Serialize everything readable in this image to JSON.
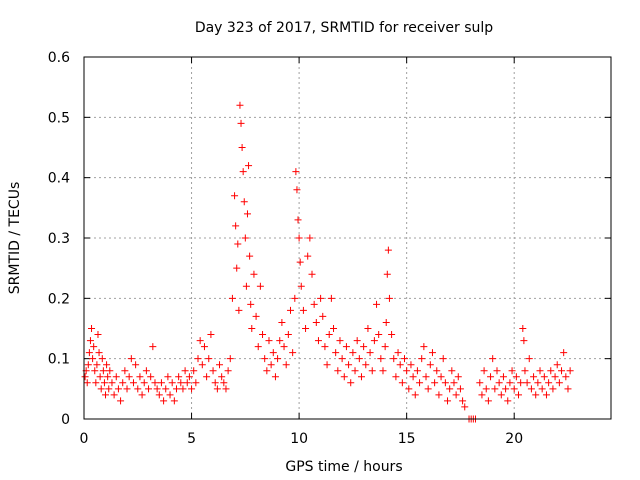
{
  "chart_data": {
    "type": "scatter",
    "title": "Day 323 of 2017, SRMTID for receiver sulp",
    "xlabel": "GPS time / hours",
    "ylabel": "SRMTID / TECUs",
    "xlim": [
      0,
      24.5
    ],
    "ylim": [
      0,
      0.6
    ],
    "xticks": [
      0,
      5,
      10,
      15,
      20
    ],
    "yticks": [
      0,
      0.1,
      0.2,
      0.3,
      0.4,
      0.5,
      0.6
    ],
    "xtick_labels": [
      "0",
      "5",
      "10",
      "15",
      "20"
    ],
    "ytick_labels": [
      "0",
      "0.1",
      "0.2",
      "0.3",
      "0.4",
      "0.5",
      "0.6"
    ],
    "grid": true,
    "marker": "plus",
    "color": "#ff0000",
    "series": [
      {
        "name": "SRMTID",
        "points": [
          [
            0.05,
            0.07
          ],
          [
            0.1,
            0.08
          ],
          [
            0.15,
            0.06
          ],
          [
            0.2,
            0.09
          ],
          [
            0.25,
            0.11
          ],
          [
            0.3,
            0.13
          ],
          [
            0.35,
            0.15
          ],
          [
            0.4,
            0.1
          ],
          [
            0.45,
            0.12
          ],
          [
            0.5,
            0.08
          ],
          [
            0.55,
            0.06
          ],
          [
            0.6,
            0.09
          ],
          [
            0.65,
            0.14
          ],
          [
            0.7,
            0.11
          ],
          [
            0.75,
            0.07
          ],
          [
            0.8,
            0.05
          ],
          [
            0.85,
            0.1
          ],
          [
            0.9,
            0.08
          ],
          [
            0.95,
            0.06
          ],
          [
            1.0,
            0.04
          ],
          [
            1.05,
            0.09
          ],
          [
            1.1,
            0.07
          ],
          [
            1.15,
            0.05
          ],
          [
            1.2,
            0.08
          ],
          [
            1.3,
            0.06
          ],
          [
            1.4,
            0.04
          ],
          [
            1.5,
            0.07
          ],
          [
            1.6,
            0.05
          ],
          [
            1.7,
            0.03
          ],
          [
            1.8,
            0.06
          ],
          [
            1.9,
            0.08
          ],
          [
            2.0,
            0.05
          ],
          [
            2.1,
            0.07
          ],
          [
            2.2,
            0.1
          ],
          [
            2.3,
            0.06
          ],
          [
            2.4,
            0.09
          ],
          [
            2.5,
            0.05
          ],
          [
            2.6,
            0.07
          ],
          [
            2.7,
            0.04
          ],
          [
            2.8,
            0.06
          ],
          [
            2.9,
            0.08
          ],
          [
            3.0,
            0.05
          ],
          [
            3.1,
            0.07
          ],
          [
            3.2,
            0.12
          ],
          [
            3.3,
            0.06
          ],
          [
            3.4,
            0.05
          ],
          [
            3.5,
            0.04
          ],
          [
            3.6,
            0.06
          ],
          [
            3.7,
            0.03
          ],
          [
            3.8,
            0.05
          ],
          [
            3.9,
            0.07
          ],
          [
            4.0,
            0.04
          ],
          [
            4.1,
            0.06
          ],
          [
            4.2,
            0.03
          ],
          [
            4.3,
            0.05
          ],
          [
            4.4,
            0.07
          ],
          [
            4.5,
            0.06
          ],
          [
            4.6,
            0.05
          ],
          [
            4.7,
            0.08
          ],
          [
            4.8,
            0.06
          ],
          [
            4.9,
            0.07
          ],
          [
            5.0,
            0.05
          ],
          [
            5.1,
            0.08
          ],
          [
            5.2,
            0.06
          ],
          [
            5.3,
            0.1
          ],
          [
            5.4,
            0.13
          ],
          [
            5.5,
            0.09
          ],
          [
            5.6,
            0.12
          ],
          [
            5.7,
            0.07
          ],
          [
            5.8,
            0.1
          ],
          [
            5.9,
            0.14
          ],
          [
            6.0,
            0.08
          ],
          [
            6.1,
            0.06
          ],
          [
            6.2,
            0.05
          ],
          [
            6.3,
            0.09
          ],
          [
            6.4,
            0.07
          ],
          [
            6.5,
            0.06
          ],
          [
            6.6,
            0.05
          ],
          [
            6.7,
            0.08
          ],
          [
            6.8,
            0.1
          ],
          [
            6.9,
            0.2
          ],
          [
            7.0,
            0.37
          ],
          [
            7.05,
            0.32
          ],
          [
            7.1,
            0.25
          ],
          [
            7.15,
            0.29
          ],
          [
            7.2,
            0.18
          ],
          [
            7.25,
            0.52
          ],
          [
            7.3,
            0.49
          ],
          [
            7.35,
            0.45
          ],
          [
            7.4,
            0.41
          ],
          [
            7.45,
            0.36
          ],
          [
            7.5,
            0.3
          ],
          [
            7.55,
            0.22
          ],
          [
            7.6,
            0.34
          ],
          [
            7.65,
            0.42
          ],
          [
            7.7,
            0.27
          ],
          [
            7.75,
            0.19
          ],
          [
            7.8,
            0.15
          ],
          [
            7.9,
            0.24
          ],
          [
            8.0,
            0.17
          ],
          [
            8.1,
            0.12
          ],
          [
            8.2,
            0.22
          ],
          [
            8.3,
            0.14
          ],
          [
            8.4,
            0.1
          ],
          [
            8.5,
            0.08
          ],
          [
            8.6,
            0.13
          ],
          [
            8.7,
            0.09
          ],
          [
            8.8,
            0.11
          ],
          [
            8.9,
            0.07
          ],
          [
            9.0,
            0.1
          ],
          [
            9.1,
            0.13
          ],
          [
            9.2,
            0.16
          ],
          [
            9.3,
            0.12
          ],
          [
            9.4,
            0.09
          ],
          [
            9.5,
            0.14
          ],
          [
            9.6,
            0.18
          ],
          [
            9.7,
            0.11
          ],
          [
            9.8,
            0.2
          ],
          [
            9.85,
            0.41
          ],
          [
            9.9,
            0.38
          ],
          [
            9.95,
            0.33
          ],
          [
            10.0,
            0.3
          ],
          [
            10.05,
            0.26
          ],
          [
            10.1,
            0.22
          ],
          [
            10.2,
            0.18
          ],
          [
            10.3,
            0.15
          ],
          [
            10.4,
            0.27
          ],
          [
            10.5,
            0.3
          ],
          [
            10.6,
            0.24
          ],
          [
            10.7,
            0.19
          ],
          [
            10.8,
            0.16
          ],
          [
            10.9,
            0.13
          ],
          [
            11.0,
            0.2
          ],
          [
            11.1,
            0.17
          ],
          [
            11.2,
            0.12
          ],
          [
            11.3,
            0.09
          ],
          [
            11.4,
            0.14
          ],
          [
            11.5,
            0.2
          ],
          [
            11.6,
            0.15
          ],
          [
            11.7,
            0.11
          ],
          [
            11.8,
            0.08
          ],
          [
            11.9,
            0.13
          ],
          [
            12.0,
            0.1
          ],
          [
            12.1,
            0.07
          ],
          [
            12.2,
            0.12
          ],
          [
            12.3,
            0.09
          ],
          [
            12.4,
            0.06
          ],
          [
            12.5,
            0.11
          ],
          [
            12.6,
            0.08
          ],
          [
            12.7,
            0.13
          ],
          [
            12.8,
            0.1
          ],
          [
            12.9,
            0.07
          ],
          [
            13.0,
            0.12
          ],
          [
            13.1,
            0.09
          ],
          [
            13.2,
            0.15
          ],
          [
            13.3,
            0.11
          ],
          [
            13.4,
            0.08
          ],
          [
            13.5,
            0.13
          ],
          [
            13.6,
            0.19
          ],
          [
            13.7,
            0.14
          ],
          [
            13.8,
            0.1
          ],
          [
            13.9,
            0.08
          ],
          [
            14.0,
            0.12
          ],
          [
            14.05,
            0.16
          ],
          [
            14.1,
            0.24
          ],
          [
            14.15,
            0.28
          ],
          [
            14.2,
            0.2
          ],
          [
            14.3,
            0.14
          ],
          [
            14.4,
            0.1
          ],
          [
            14.5,
            0.07
          ],
          [
            14.6,
            0.11
          ],
          [
            14.7,
            0.09
          ],
          [
            14.8,
            0.06
          ],
          [
            14.9,
            0.1
          ],
          [
            15.0,
            0.08
          ],
          [
            15.1,
            0.05
          ],
          [
            15.2,
            0.09
          ],
          [
            15.3,
            0.07
          ],
          [
            15.4,
            0.04
          ],
          [
            15.5,
            0.08
          ],
          [
            15.6,
            0.06
          ],
          [
            15.7,
            0.1
          ],
          [
            15.8,
            0.12
          ],
          [
            15.9,
            0.07
          ],
          [
            16.0,
            0.05
          ],
          [
            16.1,
            0.09
          ],
          [
            16.2,
            0.11
          ],
          [
            16.3,
            0.06
          ],
          [
            16.4,
            0.08
          ],
          [
            16.5,
            0.04
          ],
          [
            16.6,
            0.07
          ],
          [
            16.7,
            0.1
          ],
          [
            16.8,
            0.06
          ],
          [
            16.9,
            0.03
          ],
          [
            17.0,
            0.05
          ],
          [
            17.1,
            0.08
          ],
          [
            17.2,
            0.06
          ],
          [
            17.3,
            0.04
          ],
          [
            17.4,
            0.07
          ],
          [
            17.5,
            0.05
          ],
          [
            17.6,
            0.03
          ],
          [
            17.7,
            0.02
          ],
          [
            17.9,
            0.0
          ],
          [
            18.0,
            0.0
          ],
          [
            18.1,
            0.0
          ],
          [
            18.2,
            0.0
          ],
          [
            18.4,
            0.06
          ],
          [
            18.5,
            0.04
          ],
          [
            18.6,
            0.08
          ],
          [
            18.7,
            0.05
          ],
          [
            18.8,
            0.03
          ],
          [
            18.9,
            0.07
          ],
          [
            19.0,
            0.1
          ],
          [
            19.1,
            0.05
          ],
          [
            19.2,
            0.08
          ],
          [
            19.3,
            0.06
          ],
          [
            19.4,
            0.04
          ],
          [
            19.5,
            0.07
          ],
          [
            19.6,
            0.05
          ],
          [
            19.7,
            0.03
          ],
          [
            19.8,
            0.06
          ],
          [
            19.9,
            0.08
          ],
          [
            20.0,
            0.05
          ],
          [
            20.1,
            0.07
          ],
          [
            20.2,
            0.04
          ],
          [
            20.3,
            0.06
          ],
          [
            20.4,
            0.15
          ],
          [
            20.45,
            0.13
          ],
          [
            20.5,
            0.08
          ],
          [
            20.6,
            0.06
          ],
          [
            20.7,
            0.1
          ],
          [
            20.8,
            0.05
          ],
          [
            20.9,
            0.07
          ],
          [
            21.0,
            0.04
          ],
          [
            21.1,
            0.06
          ],
          [
            21.2,
            0.08
          ],
          [
            21.3,
            0.05
          ],
          [
            21.4,
            0.07
          ],
          [
            21.5,
            0.04
          ],
          [
            21.6,
            0.06
          ],
          [
            21.7,
            0.08
          ],
          [
            21.8,
            0.05
          ],
          [
            21.9,
            0.07
          ],
          [
            22.0,
            0.09
          ],
          [
            22.1,
            0.06
          ],
          [
            22.2,
            0.08
          ],
          [
            22.3,
            0.11
          ],
          [
            22.4,
            0.07
          ],
          [
            22.5,
            0.05
          ],
          [
            22.6,
            0.08
          ]
        ]
      }
    ]
  }
}
